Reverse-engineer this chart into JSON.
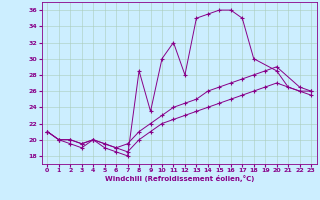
{
  "xlabel": "Windchill (Refroidissement éolien,°C)",
  "bg_color": "#cceeff",
  "grid_color": "#aaccbb",
  "line_color": "#880088",
  "xlim": [
    -0.5,
    23.5
  ],
  "ylim": [
    17,
    37
  ],
  "yticks": [
    18,
    20,
    22,
    24,
    26,
    28,
    30,
    32,
    34,
    36
  ],
  "xticks": [
    0,
    1,
    2,
    3,
    4,
    5,
    6,
    7,
    8,
    9,
    10,
    11,
    12,
    13,
    14,
    15,
    16,
    17,
    18,
    19,
    20,
    21,
    22,
    23
  ],
  "series1_x": [
    0,
    1,
    2,
    3,
    4,
    5,
    6,
    7,
    8,
    9,
    10,
    11,
    12,
    13,
    14,
    15,
    16,
    17,
    18,
    20,
    21,
    22,
    23
  ],
  "series1_y": [
    21,
    20,
    19.5,
    19,
    20,
    19,
    18.5,
    18,
    28.5,
    23.5,
    30,
    32,
    28,
    35,
    35.5,
    36,
    36,
    35,
    30,
    28.5,
    26.5,
    26,
    26
  ],
  "series2_x": [
    0,
    1,
    2,
    3,
    4,
    5,
    6,
    7,
    8,
    9,
    10,
    11,
    12,
    13,
    14,
    15,
    16,
    17,
    18,
    19,
    20,
    22,
    23
  ],
  "series2_y": [
    21,
    20,
    20,
    19.5,
    20,
    19.5,
    19,
    19.5,
    21,
    22,
    23,
    24,
    24.5,
    25,
    26,
    26.5,
    27,
    27.5,
    28,
    28.5,
    29,
    26.5,
    26
  ],
  "series3_x": [
    0,
    1,
    2,
    3,
    4,
    5,
    6,
    7,
    8,
    9,
    10,
    11,
    12,
    13,
    14,
    15,
    16,
    17,
    18,
    19,
    20,
    23
  ],
  "series3_y": [
    21,
    20,
    20,
    19.5,
    20,
    19.5,
    19,
    18.5,
    20,
    21,
    22,
    22.5,
    23,
    23.5,
    24,
    24.5,
    25,
    25.5,
    26,
    26.5,
    27,
    25.5
  ]
}
